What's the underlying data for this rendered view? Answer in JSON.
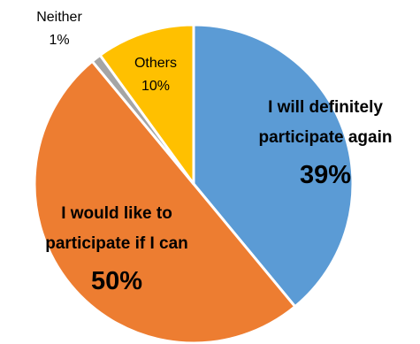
{
  "chart_data": {
    "type": "pie",
    "title": "",
    "start": "top, clockwise",
    "slices": [
      {
        "label_lines": [
          "I will definitely",
          "participate again"
        ],
        "value_label": "39%",
        "value": 39,
        "color": "#5B9BD5",
        "label_color": "#000000",
        "label_bold": true
      },
      {
        "label_lines": [
          "I would like to",
          "participate if I can"
        ],
        "value_label": "50%",
        "value": 50,
        "color": "#ED7D31",
        "label_color": "#000000",
        "label_bold": true
      },
      {
        "label_lines": [
          "Neither"
        ],
        "value_label": "1%",
        "value": 1,
        "color": "#A5A5A5",
        "label_color": "#000000",
        "label_bold": false
      },
      {
        "label_lines": [
          "Others"
        ],
        "value_label": "10%",
        "value": 10,
        "color": "#FFC000",
        "label_color": "#000000",
        "label_bold": false
      }
    ]
  }
}
